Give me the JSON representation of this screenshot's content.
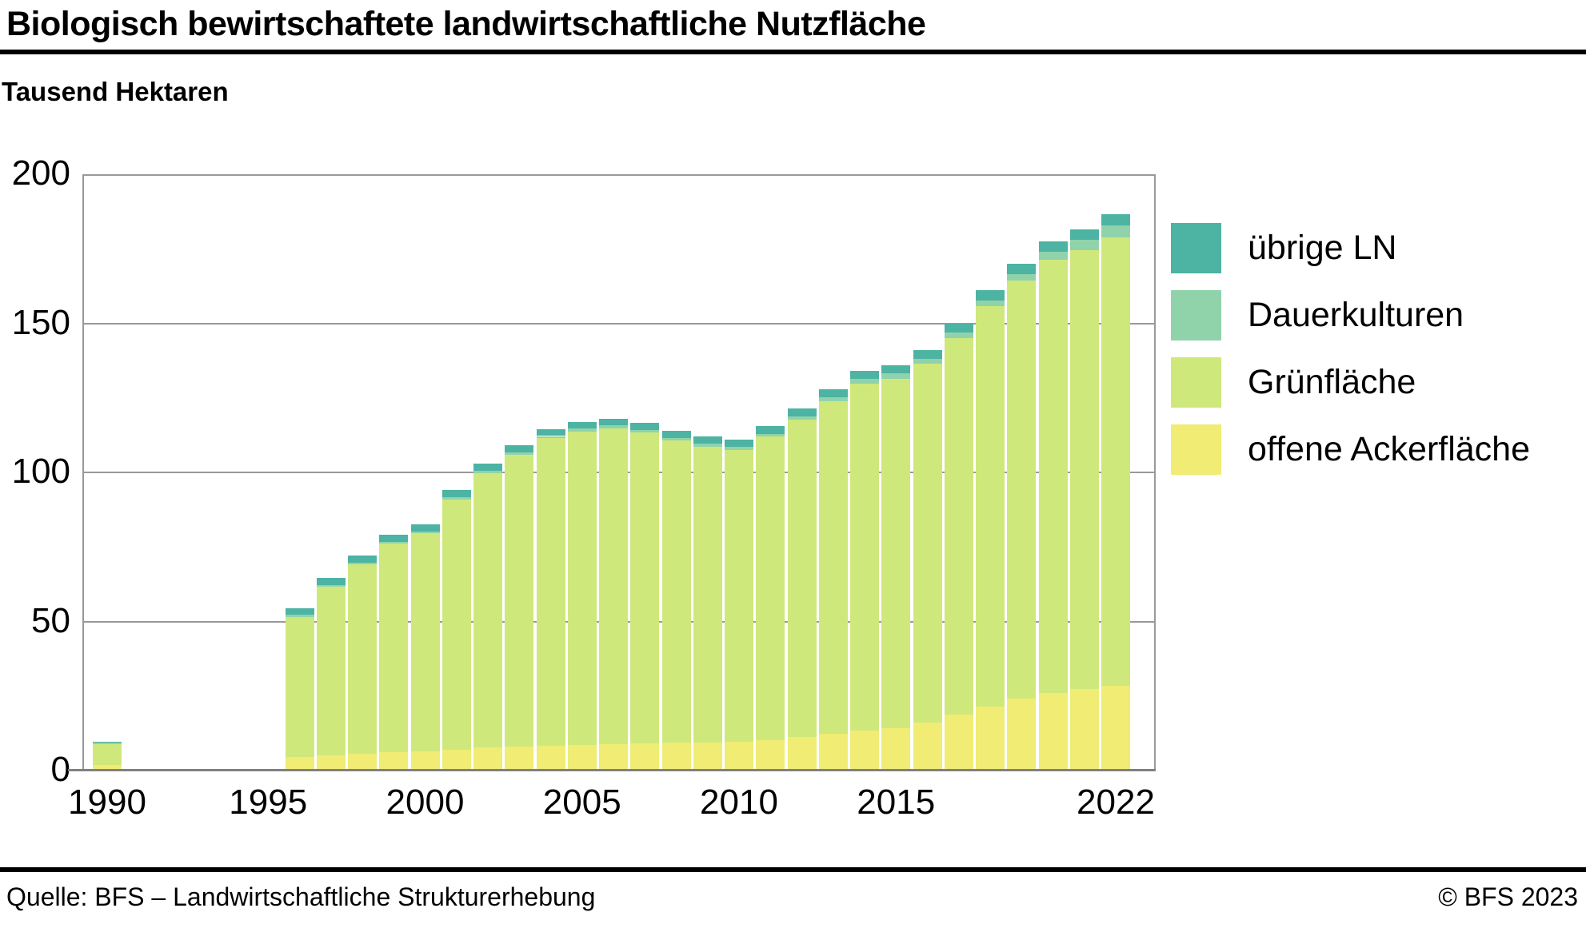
{
  "header": {
    "title": "Biologisch bewirtschaftete landwirtschaftliche Nutzfläche",
    "unit_label": "Tausend Hektaren"
  },
  "footer": {
    "source": "Quelle: BFS – Landwirtschaftliche Strukturerhebung",
    "copyright": "© BFS 2023"
  },
  "colors": {
    "uebrige_ln": "#4db3a3",
    "dauerkulturen": "#90d3ab",
    "gruenflaeche": "#cfe87c",
    "offene_ackerflaeche": "#f0ec74",
    "gridline": "#999999",
    "zero_line": "#808080"
  },
  "legend": [
    {
      "label": "übrige LN",
      "color": "#4db3a3"
    },
    {
      "label": "Dauerkulturen",
      "color": "#90d3ab"
    },
    {
      "label": "Grünfläche",
      "color": "#cfe87c"
    },
    {
      "label": "offene Ackerfläche",
      "color": "#f0ec74"
    }
  ],
  "chart_data": {
    "type": "bar",
    "stacked": true,
    "title": "Biologisch bewirtschaftete landwirtschaftliche Nutzfläche",
    "ylabel": "Tausend Hektaren",
    "ylim": [
      0,
      200
    ],
    "yticks": [
      0,
      50,
      100,
      150,
      200
    ],
    "xticks": [
      1990,
      1995,
      2000,
      2005,
      2010,
      2015,
      2022
    ],
    "grid": true,
    "legend_position": "right",
    "categories": [
      1990,
      1996,
      1997,
      1998,
      1999,
      2000,
      2001,
      2002,
      2003,
      2004,
      2005,
      2006,
      2007,
      2008,
      2009,
      2010,
      2011,
      2012,
      2013,
      2014,
      2015,
      2016,
      2017,
      2018,
      2019,
      2020,
      2021,
      2022
    ],
    "series": [
      {
        "name": "offene Ackerfläche",
        "color": "#f0ec74",
        "values": [
          1.9,
          4.6,
          5.1,
          5.6,
          6.1,
          6.4,
          7.0,
          7.7,
          8.0,
          8.3,
          8.6,
          8.9,
          9.1,
          9.3,
          9.5,
          9.7,
          10.3,
          11.3,
          12.2,
          13.4,
          14.3,
          16.1,
          18.8,
          21.5,
          24.0,
          26.0,
          27.3,
          28.5
        ]
      },
      {
        "name": "Grünfläche",
        "color": "#cfe87c",
        "values": [
          7.0,
          47.0,
          56.5,
          63.5,
          70.0,
          73.1,
          83.8,
          92.1,
          97.8,
          103.1,
          105.2,
          105.9,
          104.2,
          101.4,
          99.2,
          97.9,
          101.7,
          106.4,
          111.7,
          116.3,
          117.2,
          120.3,
          126.2,
          134.3,
          140.3,
          145.2,
          147.1,
          150.4
        ]
      },
      {
        "name": "Dauerkulturen",
        "color": "#90d3ab",
        "values": [
          0.5,
          0.7,
          0.7,
          0.7,
          0.7,
          0.7,
          0.8,
          0.8,
          0.8,
          0.8,
          0.9,
          0.9,
          0.9,
          0.9,
          0.9,
          1.0,
          1.0,
          1.2,
          1.4,
          1.6,
          1.7,
          1.7,
          1.8,
          1.8,
          2.2,
          2.8,
          3.5,
          3.9
        ]
      },
      {
        "name": "übrige LN",
        "color": "#4db3a3",
        "values": [
          0.2,
          2.2,
          2.2,
          2.2,
          2.2,
          2.3,
          2.4,
          2.4,
          2.4,
          2.3,
          2.3,
          2.3,
          2.3,
          2.4,
          2.4,
          2.4,
          2.5,
          2.6,
          2.7,
          2.7,
          2.8,
          2.9,
          3.2,
          3.4,
          3.5,
          3.5,
          3.6,
          3.7
        ]
      }
    ],
    "totals": [
      9.6,
      54.5,
      64.5,
      72.0,
      79.0,
      82.5,
      94.0,
      103.0,
      109.0,
      114.5,
      117.0,
      118.0,
      116.5,
      114.0,
      112.0,
      111.0,
      115.5,
      121.5,
      128.0,
      134.0,
      136.0,
      141.0,
      150.0,
      161.0,
      170.0,
      177.5,
      181.5,
      186.5
    ]
  }
}
